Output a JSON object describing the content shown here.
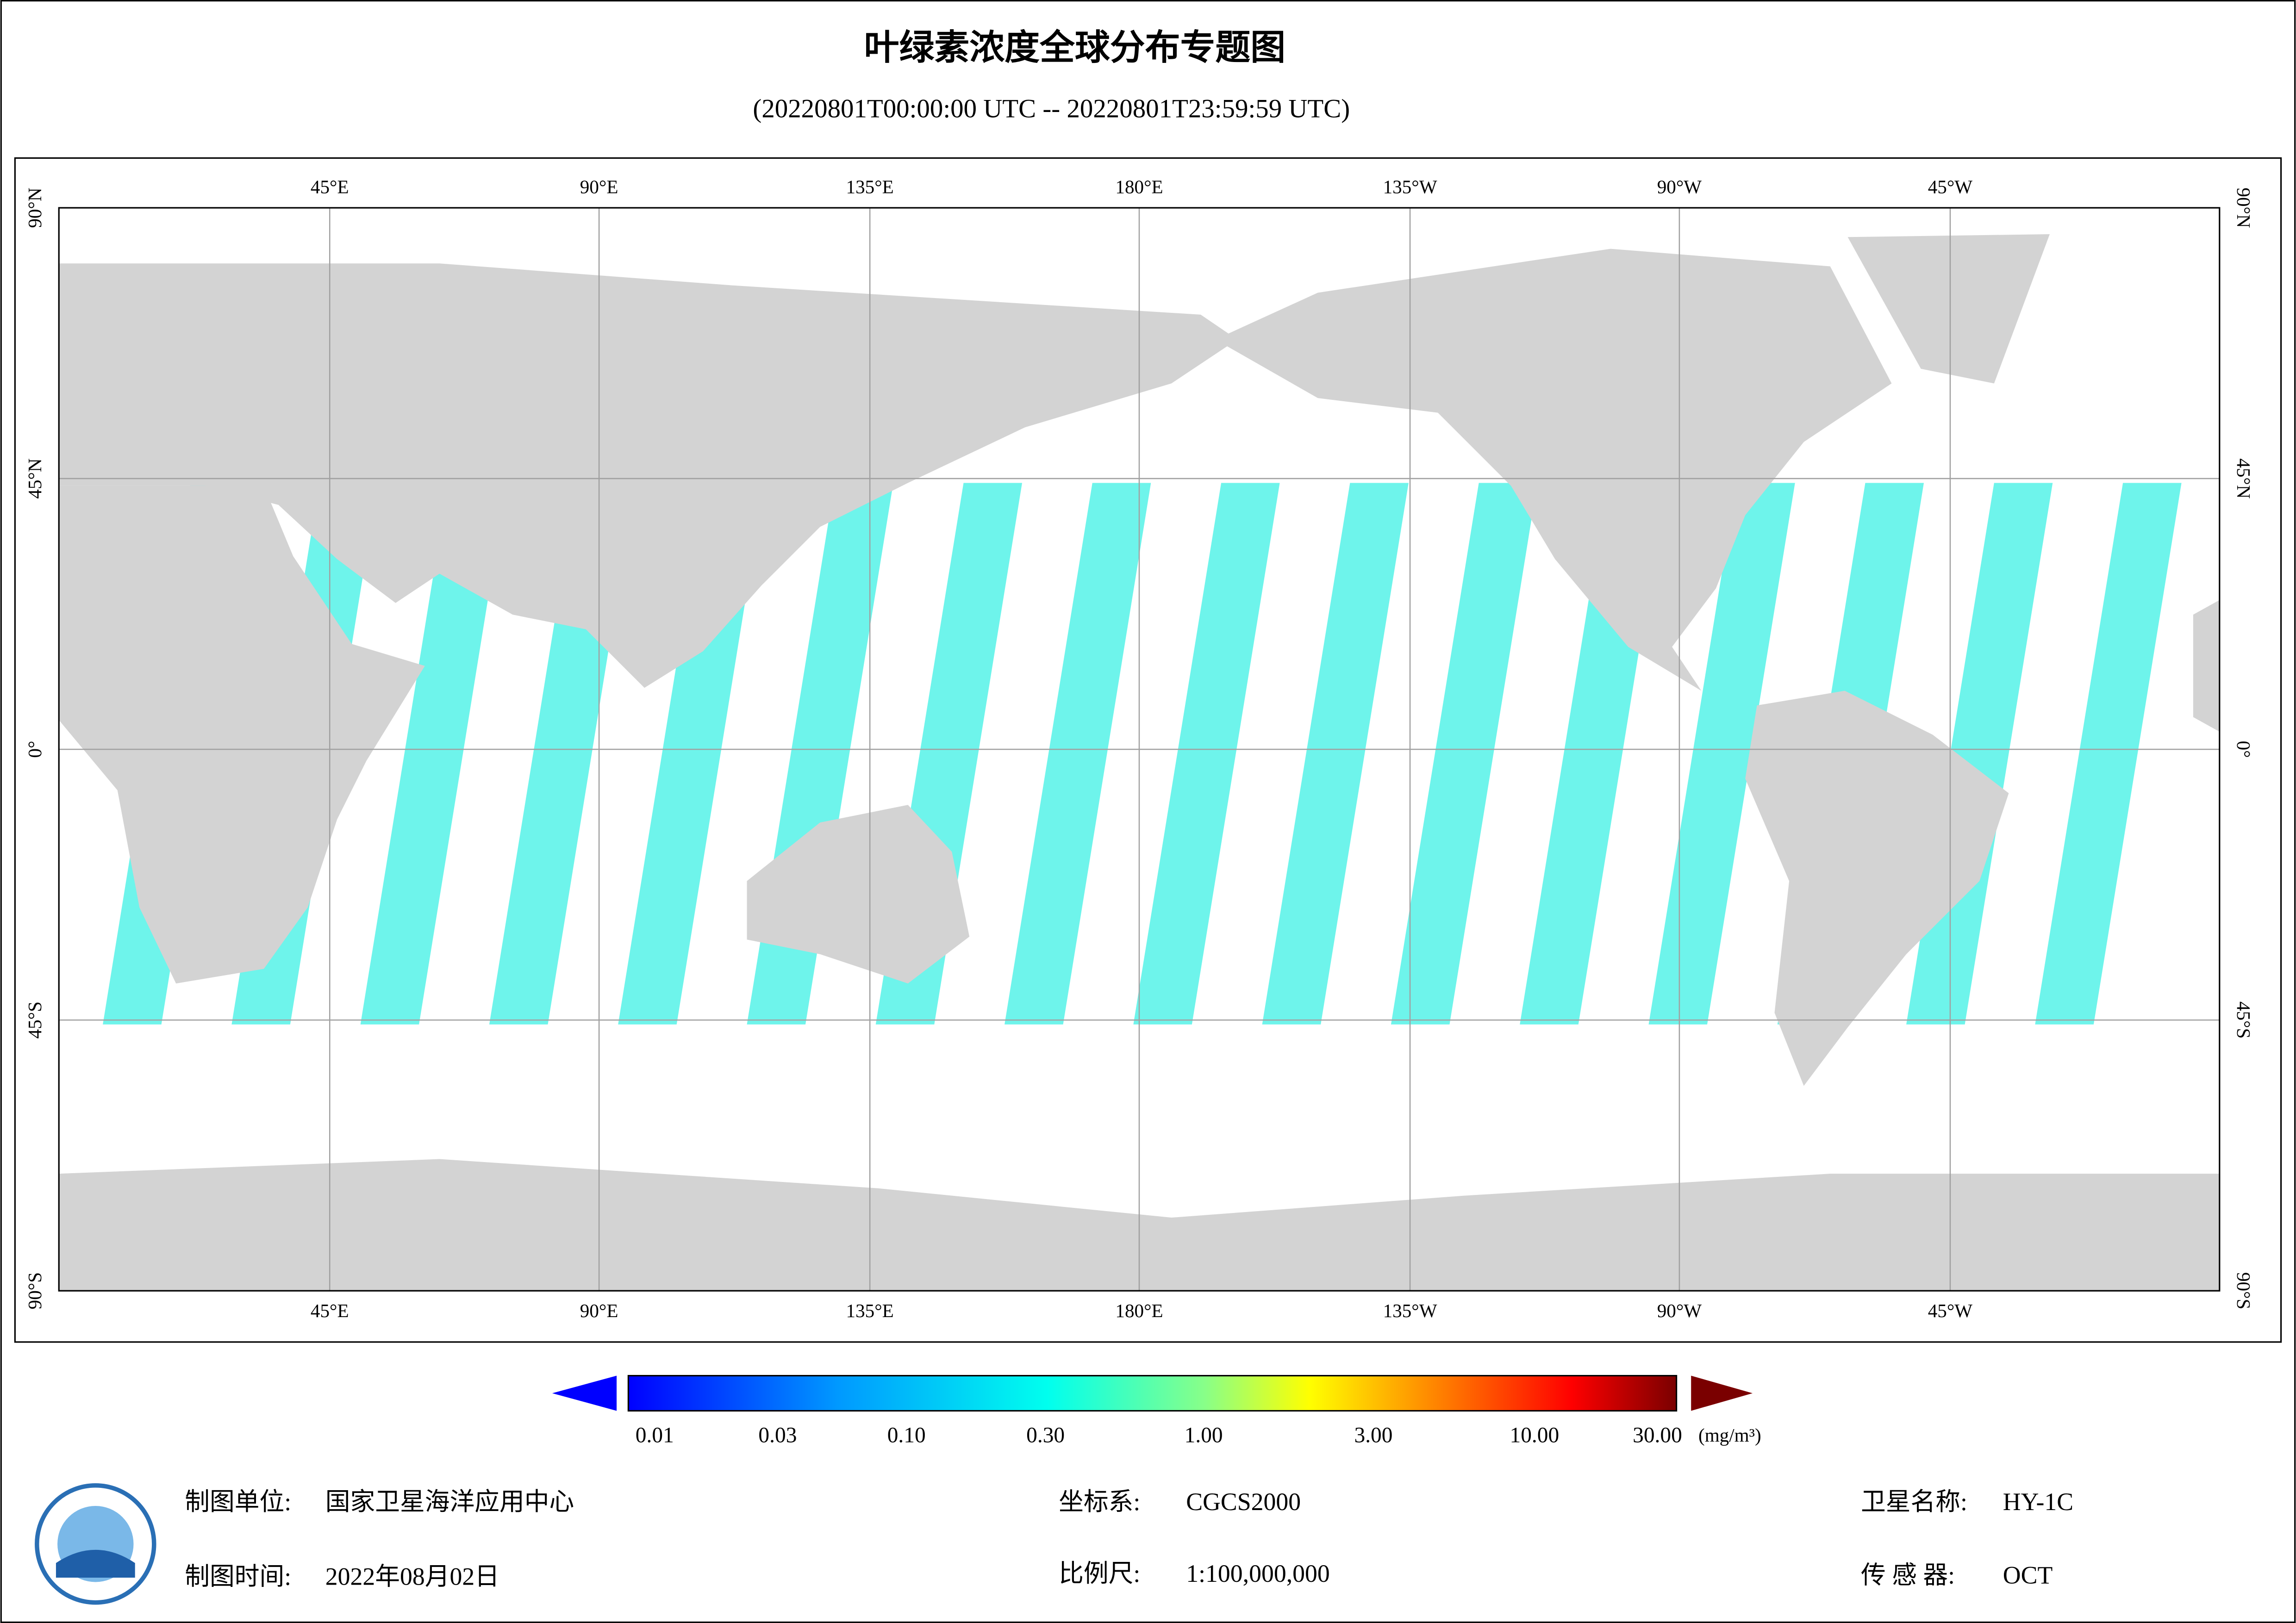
{
  "header": {
    "title": "叶绿素浓度全球分布专题图",
    "subtitle": "(20220801T00:00:00 UTC -- 20220801T23:59:59 UTC)"
  },
  "map": {
    "longitude_labels": [
      "45°E",
      "90°E",
      "135°E",
      "180°E",
      "135°W",
      "90°W",
      "45°W"
    ],
    "latitude_labels": [
      "90°N",
      "45°N",
      "0°",
      "45°S",
      "90°S"
    ]
  },
  "colorbar": {
    "labels": [
      "0.01",
      "0.03",
      "0.10",
      "0.30",
      "1.00",
      "3.00",
      "10.00",
      "30.00"
    ],
    "unit": "(mg/m³)"
  },
  "footer": {
    "unit_label": "制图单位:",
    "unit": "国家卫星海洋应用中心",
    "date_label": "制图时间:",
    "date": "2022年08月02日",
    "crs_label": "坐标系:",
    "crs": "CGCS2000",
    "scale_label": "比例尺:",
    "scale": "1:100,000,000",
    "satellite_label": "卫星名称:",
    "satellite": "HY-1C",
    "sensor_label": "传 感 器:",
    "sensor": "OCT"
  }
}
